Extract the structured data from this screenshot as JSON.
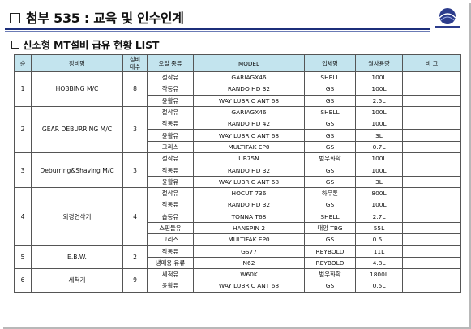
{
  "slide": {
    "title": "첨부 535 : 교육 및 인수인계",
    "subtitle": "신소형 MT설비 급유 현황 LIST"
  },
  "colors": {
    "header_fill": "#c3e4ee",
    "rule": "#1c2e7a",
    "logo": "#2c3c8c"
  },
  "table": {
    "headers": [
      "순",
      "장비명",
      "설비\n대수",
      "오일 종류",
      "MODEL",
      "업체명",
      "월사용량",
      "비 고"
    ],
    "groups": [
      {
        "no": "1",
        "name": "HOBBING M/C",
        "count": "8",
        "rows": [
          {
            "oil": "절삭유",
            "model": "GARIAGX46",
            "maker": "SHELL",
            "usage": "100L",
            "note": ""
          },
          {
            "oil": "작동유",
            "model": "RANDO HD 32",
            "maker": "GS",
            "usage": "100L",
            "note": ""
          },
          {
            "oil": "윤활유",
            "model": "WAY LUBRIC ANT 68",
            "maker": "GS",
            "usage": "2.5L",
            "note": ""
          }
        ]
      },
      {
        "no": "2",
        "name": "GEAR DEBURRING M/C",
        "count": "3",
        "rows": [
          {
            "oil": "절삭유",
            "model": "GARIAGX46",
            "maker": "SHELL",
            "usage": "100L",
            "note": ""
          },
          {
            "oil": "작동유",
            "model": "RANDO HD 42",
            "maker": "GS",
            "usage": "100L",
            "note": ""
          },
          {
            "oil": "윤활유",
            "model": "WAY LUBRIC ANT 68",
            "maker": "GS",
            "usage": "3L",
            "note": ""
          },
          {
            "oil": "그리스",
            "model": "MULTIFAK EP0",
            "maker": "GS",
            "usage": "0.7L",
            "note": ""
          }
        ]
      },
      {
        "no": "3",
        "name": "Deburring&Shaving M/C",
        "count": "3",
        "rows": [
          {
            "oil": "절삭유",
            "model": "UB75N",
            "maker": "범우화학",
            "usage": "100L",
            "note": ""
          },
          {
            "oil": "작동유",
            "model": "RANDO HD 32",
            "maker": "GS",
            "usage": "100L",
            "note": ""
          },
          {
            "oil": "윤활유",
            "model": "WAY LUBRIC ANT 68",
            "maker": "GS",
            "usage": "3L",
            "note": ""
          }
        ]
      },
      {
        "no": "4",
        "name": "외경연삭기",
        "count": "4",
        "rows": [
          {
            "oil": "절삭유",
            "model": "HOCUT 736",
            "maker": "하우톤",
            "usage": "800L",
            "note": ""
          },
          {
            "oil": "작동유",
            "model": "RANDO HD 32",
            "maker": "GS",
            "usage": "100L",
            "note": ""
          },
          {
            "oil": "습동유",
            "model": "TONNA T68",
            "maker": "SHELL",
            "usage": "2.7L",
            "note": ""
          },
          {
            "oil": "스핀들유",
            "model": "HANSPIN 2",
            "maker": "대양 TBG",
            "usage": "55L",
            "note": ""
          },
          {
            "oil": "그리스",
            "model": "MULTIFAK EP0",
            "maker": "GS",
            "usage": "0.5L",
            "note": ""
          }
        ]
      },
      {
        "no": "5",
        "name": "E.B.W.",
        "count": "2",
        "rows": [
          {
            "oil": "작동유",
            "model": "GS77",
            "maker": "REYBOLD",
            "usage": "11L",
            "note": ""
          },
          {
            "oil": "냉매용 유류",
            "model": "N62",
            "maker": "REYBOLD",
            "usage": "4.8L",
            "note": ""
          }
        ]
      },
      {
        "no": "6",
        "name": "세척기",
        "count": "9",
        "rows": [
          {
            "oil": "세척유",
            "model": "W60K",
            "maker": "범우화학",
            "usage": "1800L",
            "note": ""
          },
          {
            "oil": "윤활유",
            "model": "WAY LUBRIC ANT 68",
            "maker": "GS",
            "usage": "0.5L",
            "note": ""
          }
        ]
      }
    ]
  }
}
